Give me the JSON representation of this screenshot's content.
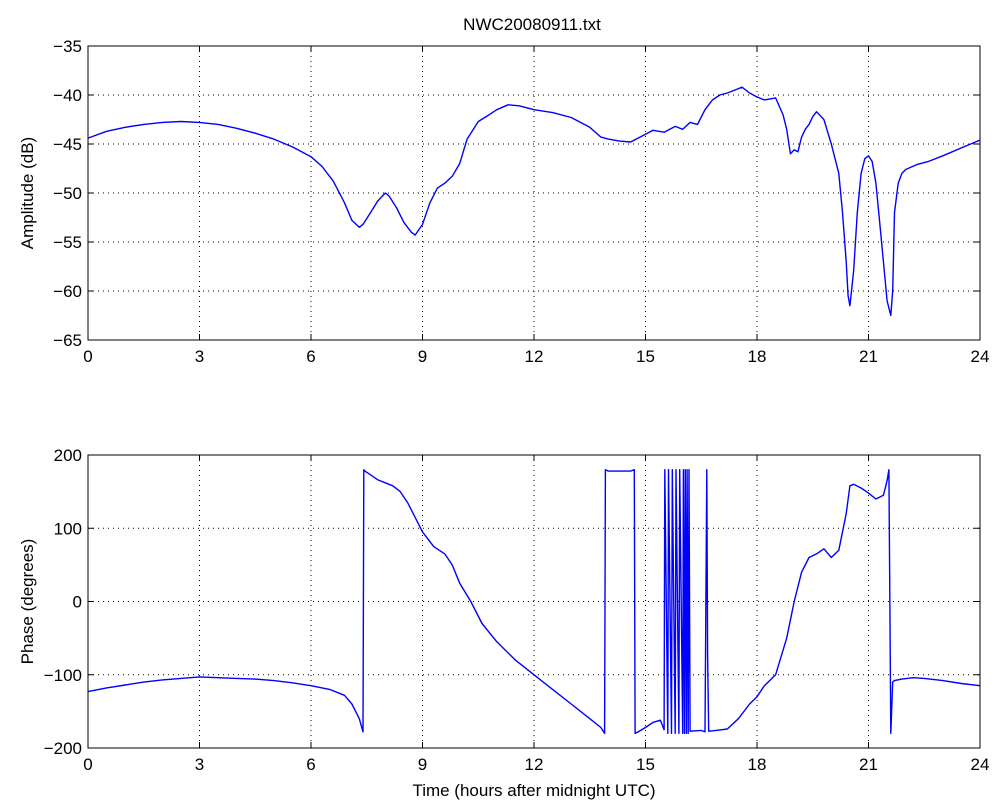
{
  "figure": {
    "title": "NWC20080911.txt"
  },
  "chart_data": [
    {
      "type": "line",
      "title": "NWC20080911.txt",
      "xlabel": "",
      "ylabel": "Amplitude (dB)",
      "xlim": [
        0,
        24
      ],
      "ylim": [
        -65,
        -35
      ],
      "xticks": [
        0,
        3,
        6,
        9,
        12,
        15,
        18,
        21,
        24
      ],
      "yticks": [
        -65,
        -60,
        -55,
        -50,
        -45,
        -40,
        -35
      ],
      "xtick_labels": [
        "0",
        "3",
        "6",
        "9",
        "12",
        "15",
        "18",
        "21",
        "24"
      ],
      "ytick_labels": [
        "-65",
        "-60",
        "-55",
        "-50",
        "-45",
        "-40",
        "-35"
      ],
      "grid": true,
      "line_color": "#0000ff",
      "series": [
        {
          "x": [
            0,
            0.5,
            1,
            1.5,
            2,
            2.5,
            3,
            3.5,
            4,
            4.5,
            5,
            5.5,
            6,
            6.3,
            6.6,
            6.9,
            7.1,
            7.3,
            7.4,
            7.6,
            7.8,
            8.0,
            8.1,
            8.3,
            8.5,
            8.7,
            8.8,
            9.0,
            9.2,
            9.4,
            9.6,
            9.8,
            10.0,
            10.2,
            10.5,
            10.8,
            11.0,
            11.3,
            11.6,
            12.0,
            12.5,
            13.0,
            13.5,
            13.8,
            14.0,
            14.3,
            14.6,
            14.8,
            15.0,
            15.2,
            15.5,
            15.8,
            16.0,
            16.2,
            16.4,
            16.6,
            16.8,
            17.0,
            17.2,
            17.4,
            17.6,
            17.8,
            18.0,
            18.2,
            18.5,
            18.7,
            18.8,
            18.9,
            19.0,
            19.1,
            19.2,
            19.3,
            19.4,
            19.5,
            19.6,
            19.8,
            20.0,
            20.2,
            20.3,
            20.4,
            20.45,
            20.5,
            20.6,
            20.7,
            20.8,
            20.9,
            21.0,
            21.1,
            21.2,
            21.3,
            21.4,
            21.5,
            21.6,
            21.65,
            21.7,
            21.8,
            21.9,
            22.0,
            22.3,
            22.6,
            23.0,
            23.5,
            24.0
          ],
          "values": [
            -44.4,
            -43.7,
            -43.3,
            -43.0,
            -42.8,
            -42.7,
            -42.8,
            -43.0,
            -43.4,
            -43.9,
            -44.5,
            -45.3,
            -46.3,
            -47.3,
            -48.8,
            -51.0,
            -52.8,
            -53.5,
            -53.2,
            -52.0,
            -50.8,
            -50.0,
            -50.3,
            -51.5,
            -53.0,
            -54.0,
            -54.3,
            -53.2,
            -51.0,
            -49.5,
            -49.0,
            -48.3,
            -47.0,
            -44.5,
            -42.7,
            -42.0,
            -41.5,
            -41.0,
            -41.1,
            -41.5,
            -41.8,
            -42.3,
            -43.3,
            -44.3,
            -44.5,
            -44.7,
            -44.8,
            -44.4,
            -44.0,
            -43.6,
            -43.8,
            -43.2,
            -43.5,
            -42.8,
            -43.0,
            -41.5,
            -40.5,
            -40.0,
            -39.8,
            -39.5,
            -39.2,
            -39.8,
            -40.2,
            -40.5,
            -40.3,
            -42.0,
            -43.5,
            -46.0,
            -45.6,
            -45.8,
            -44.3,
            -43.5,
            -43.0,
            -42.2,
            -41.7,
            -42.5,
            -45.0,
            -48.0,
            -52.0,
            -57.0,
            -60.5,
            -61.5,
            -58.0,
            -52.0,
            -48.0,
            -46.5,
            -46.2,
            -46.8,
            -49.0,
            -53.0,
            -57.0,
            -61.0,
            -62.5,
            -60.0,
            -52.0,
            -49.0,
            -48.0,
            -47.6,
            -47.1,
            -46.8,
            -46.2,
            -45.4,
            -44.6
          ]
        }
      ]
    },
    {
      "type": "line",
      "title": "",
      "xlabel": "Time (hours after midnight UTC)",
      "ylabel": "Phase (degrees)",
      "xlim": [
        0,
        24
      ],
      "ylim": [
        -200,
        200
      ],
      "xticks": [
        0,
        3,
        6,
        9,
        12,
        15,
        18,
        21,
        24
      ],
      "yticks": [
        -200,
        -100,
        0,
        100,
        200
      ],
      "xtick_labels": [
        "0",
        "3",
        "6",
        "9",
        "12",
        "15",
        "18",
        "21",
        "24"
      ],
      "ytick_labels": [
        "-200",
        "-100",
        "0",
        "100",
        "200"
      ],
      "grid": true,
      "line_color": "#0000ff",
      "series": [
        {
          "x": [
            0,
            0.5,
            1,
            1.5,
            2,
            2.5,
            3,
            3.5,
            4,
            4.5,
            5,
            5.5,
            6,
            6.5,
            6.9,
            7.1,
            7.3,
            7.4,
            7.42,
            7.45,
            7.6,
            7.8,
            8.0,
            8.2,
            8.4,
            8.6,
            8.8,
            9.0,
            9.3,
            9.6,
            9.8,
            10.0,
            10.3,
            10.6,
            11.0,
            11.5,
            12.0,
            12.5,
            13.0,
            13.5,
            13.8,
            13.9,
            13.92,
            14.0,
            14.3,
            14.6,
            14.7,
            14.72,
            14.8,
            15.0,
            15.2,
            15.4,
            15.5,
            15.52,
            15.6,
            15.62,
            15.7,
            15.72,
            15.8,
            15.82,
            15.9,
            15.92,
            16.0,
            16.02,
            16.05,
            16.07,
            16.1,
            16.12,
            16.15,
            16.17,
            16.2,
            16.5,
            16.6,
            16.65,
            16.67,
            16.7,
            16.9,
            17.2,
            17.5,
            17.8,
            18.0,
            18.2,
            18.5,
            18.8,
            19.0,
            19.2,
            19.4,
            19.6,
            19.8,
            20.0,
            20.2,
            20.4,
            20.5,
            20.6,
            20.8,
            21.0,
            21.2,
            21.4,
            21.5,
            21.55,
            21.6,
            21.65,
            21.7,
            21.9,
            22.2,
            22.5,
            23.0,
            23.5,
            24.0
          ],
          "values": [
            -123,
            -118,
            -114,
            -110,
            -107,
            -105,
            -103,
            -104,
            -105,
            -106,
            -108,
            -111,
            -115,
            -120,
            -128,
            -140,
            -160,
            -178,
            180,
            178,
            173,
            166,
            162,
            158,
            150,
            135,
            115,
            95,
            75,
            65,
            50,
            25,
            0,
            -30,
            -55,
            -80,
            -100,
            -120,
            -140,
            -160,
            -172,
            -180,
            180,
            178,
            178,
            178,
            180,
            -180,
            -178,
            -172,
            -165,
            -162,
            -175,
            180,
            -180,
            180,
            -180,
            180,
            -180,
            180,
            -180,
            180,
            -180,
            180,
            -180,
            180,
            -180,
            180,
            -180,
            180,
            -177,
            -176,
            -178,
            180,
            -75,
            -177,
            -176,
            -174,
            -160,
            -140,
            -130,
            -115,
            -100,
            -50,
            0,
            40,
            60,
            65,
            72,
            60,
            70,
            120,
            158,
            160,
            155,
            148,
            140,
            145,
            165,
            180,
            -180,
            -110,
            -108,
            -106,
            -104,
            -105,
            -108,
            -112,
            -115
          ]
        }
      ]
    }
  ]
}
